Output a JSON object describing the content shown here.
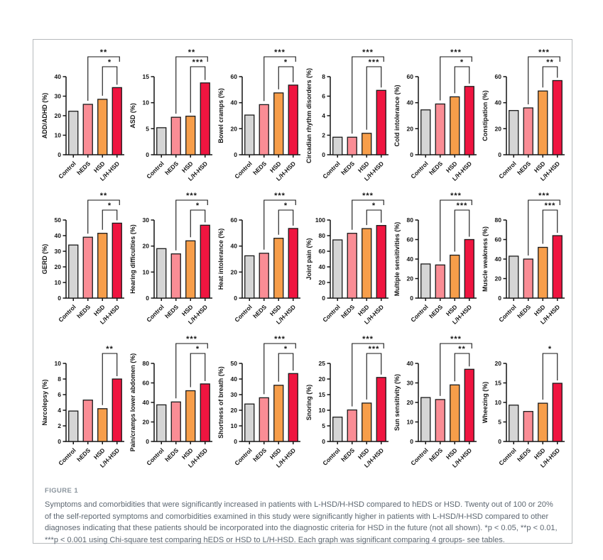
{
  "figure": {
    "label": "FIGURE 1",
    "caption": "Symptoms and comorbidities that were significantly increased in patients with L-HSD/H-HSD compared to hEDS or HSD. Twenty out of 100 or 20% of the self-reported symptoms and comorbidities examined in this study were significantly higher in patients with L-HSD/H-HSD compared to other diagnoses indicating that these patients should be incorporated into the diagnostic criteria for HSD in the future (not all shown). *p < 0.05, **p < 0.01, ***p < 0.001 using Chi-square test comparing hEDS or HSD to L/H-HSD. Each graph was significant comparing 4 groups- see tables."
  },
  "categories": [
    "Control",
    "hEDS",
    "HSD",
    "L/H-HSD"
  ],
  "bar_colors": [
    "#d5d5d5",
    "#fa8d95",
    "#f79e4a",
    "#ef1540"
  ],
  "colors": {
    "bar_outline": "#1a1a1a",
    "axis": "#141414",
    "panel_border": "#b7babd",
    "figure_label_text": "#8a949d",
    "caption_text": "#5d6771"
  },
  "chart_data": [
    {
      "id": "add-adhd",
      "type": "bar",
      "ylabel": "ADD/ADHD  (%)",
      "ylim": [
        0,
        40
      ],
      "ytick_step": 10,
      "values": [
        22.3,
        25.8,
        28.4,
        34.4
      ],
      "sig": [
        {
          "from": 1,
          "to": 3,
          "label": "**"
        },
        {
          "from": 2,
          "to": 3,
          "label": "*"
        }
      ]
    },
    {
      "id": "asd",
      "type": "bar",
      "ylabel": "ASD (%)",
      "ylim": [
        0,
        15
      ],
      "ytick_step": 5,
      "values": [
        5.2,
        7.2,
        7.4,
        13.8
      ],
      "sig": [
        {
          "from": 1,
          "to": 3,
          "label": "**"
        },
        {
          "from": 2,
          "to": 3,
          "label": "***"
        }
      ]
    },
    {
      "id": "bowel-cramps",
      "type": "bar",
      "ylabel": "Bowel cramps (%)",
      "ylim": [
        0,
        60
      ],
      "ytick_step": 20,
      "values": [
        30.5,
        38.5,
        47.5,
        53.5
      ],
      "sig": [
        {
          "from": 1,
          "to": 3,
          "label": "***"
        },
        {
          "from": 2,
          "to": 3,
          "label": "*"
        }
      ]
    },
    {
      "id": "circadian-rhythm-disorders",
      "type": "bar",
      "ylabel": "Circadian rhythm disorders (%)",
      "ylim": [
        0,
        8
      ],
      "ytick_step": 2,
      "values": [
        1.8,
        1.8,
        2.2,
        6.6
      ],
      "sig": [
        {
          "from": 1,
          "to": 3,
          "label": "***"
        },
        {
          "from": 2,
          "to": 3,
          "label": "***"
        }
      ]
    },
    {
      "id": "cold-intolerance",
      "type": "bar",
      "ylabel": "Cold intolerance  (%)",
      "ylim": [
        0,
        60
      ],
      "ytick_step": 20,
      "values": [
        34.5,
        39,
        44.5,
        52.5
      ],
      "sig": [
        {
          "from": 1,
          "to": 3,
          "label": "***"
        },
        {
          "from": 2,
          "to": 3,
          "label": "*"
        }
      ]
    },
    {
      "id": "constipation",
      "type": "bar",
      "ylabel": "Constipation (%)",
      "ylim": [
        0,
        60
      ],
      "ytick_step": 20,
      "values": [
        34,
        36,
        49,
        57
      ],
      "sig": [
        {
          "from": 1,
          "to": 3,
          "label": "***"
        },
        {
          "from": 2,
          "to": 3,
          "label": "**"
        }
      ]
    },
    {
      "id": "gerd",
      "type": "bar",
      "ylabel": "GERD (%)",
      "ylim": [
        0,
        50
      ],
      "ytick_step": 10,
      "values": [
        34,
        39,
        41.5,
        48
      ],
      "sig": [
        {
          "from": 1,
          "to": 3,
          "label": "**"
        },
        {
          "from": 2,
          "to": 3,
          "label": "*"
        }
      ]
    },
    {
      "id": "hearing-difficulties",
      "type": "bar",
      "ylabel": "Hearing difficulties (%)",
      "ylim": [
        0,
        30
      ],
      "ytick_step": 10,
      "values": [
        19,
        17,
        22,
        28
      ],
      "sig": [
        {
          "from": 1,
          "to": 3,
          "label": "***"
        },
        {
          "from": 2,
          "to": 3,
          "label": "*"
        }
      ]
    },
    {
      "id": "heat-intolerance",
      "type": "bar",
      "ylabel": "Heat intolerance  (%)",
      "ylim": [
        0,
        60
      ],
      "ytick_step": 20,
      "values": [
        32.5,
        34.5,
        46,
        53.5
      ],
      "sig": [
        {
          "from": 1,
          "to": 3,
          "label": "***"
        },
        {
          "from": 2,
          "to": 3,
          "label": "*"
        }
      ]
    },
    {
      "id": "joint-pain",
      "type": "bar",
      "ylabel": "Joint pain (%)",
      "ylim": [
        0,
        100
      ],
      "ytick_step": 20,
      "values": [
        74.5,
        83,
        89,
        93
      ],
      "sig": [
        {
          "from": 1,
          "to": 3,
          "label": "***"
        },
        {
          "from": 2,
          "to": 3,
          "label": "*"
        }
      ]
    },
    {
      "id": "multiple-sensitivities",
      "type": "bar",
      "ylabel": "Multiple sensitivities  (%)",
      "ylim": [
        0,
        80
      ],
      "ytick_step": 20,
      "values": [
        35,
        34,
        44,
        60
      ],
      "sig": [
        {
          "from": 1,
          "to": 3,
          "label": "***"
        },
        {
          "from": 2,
          "to": 3,
          "label": "***"
        }
      ]
    },
    {
      "id": "muscle-weakness",
      "type": "bar",
      "ylabel": "Muscle weakness  (%)",
      "ylim": [
        0,
        80
      ],
      "ytick_step": 20,
      "values": [
        43,
        40,
        52,
        64
      ],
      "sig": [
        {
          "from": 1,
          "to": 3,
          "label": "***"
        },
        {
          "from": 2,
          "to": 3,
          "label": "***"
        }
      ]
    },
    {
      "id": "narcolepsy",
      "type": "bar",
      "ylabel": "Narcolepsy  (%)",
      "ylim": [
        0,
        10
      ],
      "ytick_step": 2,
      "values": [
        3.9,
        5.3,
        4.2,
        8
      ],
      "sig": [
        {
          "from": 2,
          "to": 3,
          "label": "**"
        }
      ]
    },
    {
      "id": "pain-cramps-lower-abdomen",
      "type": "bar",
      "ylabel": "Pain/cramps lower abdomen  (%)",
      "ylim": [
        0,
        80
      ],
      "ytick_step": 20,
      "values": [
        37.5,
        40.5,
        52,
        59
      ],
      "sig": [
        {
          "from": 1,
          "to": 3,
          "label": "***"
        },
        {
          "from": 2,
          "to": 3,
          "label": "*"
        }
      ]
    },
    {
      "id": "shortness-of-breath",
      "type": "bar",
      "ylabel": "Shortness of breath  (%)",
      "ylim": [
        0,
        50
      ],
      "ytick_step": 10,
      "values": [
        24,
        28,
        36,
        43.5
      ],
      "sig": [
        {
          "from": 1,
          "to": 3,
          "label": "***"
        },
        {
          "from": 2,
          "to": 3,
          "label": "*"
        }
      ]
    },
    {
      "id": "snoring",
      "type": "bar",
      "ylabel": "Snoring (%)",
      "ylim": [
        0,
        25
      ],
      "ytick_step": 5,
      "values": [
        7.8,
        10.1,
        12.3,
        20.5
      ],
      "sig": [
        {
          "from": 1,
          "to": 3,
          "label": "***"
        },
        {
          "from": 2,
          "to": 3,
          "label": "***"
        }
      ]
    },
    {
      "id": "sun-sensitivity",
      "type": "bar",
      "ylabel": "Sun sensitivity  (%)",
      "ylim": [
        0,
        40
      ],
      "ytick_step": 10,
      "values": [
        22.5,
        21.5,
        29,
        37
      ],
      "sig": [
        {
          "from": 1,
          "to": 3,
          "label": "***"
        },
        {
          "from": 2,
          "to": 3,
          "label": "**"
        }
      ]
    },
    {
      "id": "wheezing",
      "type": "bar",
      "ylabel": "Wheezing (%)",
      "ylim": [
        0,
        20
      ],
      "ytick_step": 5,
      "values": [
        9.3,
        7.7,
        9.8,
        14.9
      ],
      "sig": [
        {
          "from": 2,
          "to": 3,
          "label": "*"
        }
      ]
    }
  ]
}
